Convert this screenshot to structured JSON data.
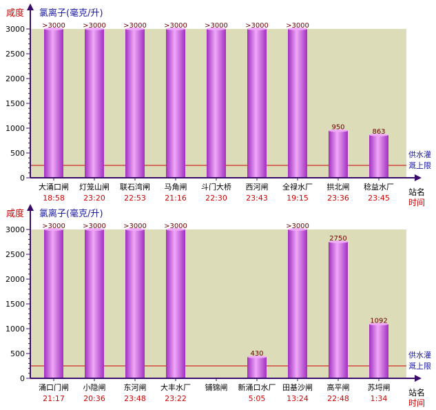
{
  "colors": {
    "plot_bg": "#dcdcb8",
    "axis": "#3a0a6a",
    "threshold": "#cc0000",
    "label_red": "#cc0000",
    "label_blue": "#1a1aa0",
    "value_text": "#660000",
    "bar_light": "#f0a8f8",
    "bar_dark": "#a030c0"
  },
  "chart_data": [
    {
      "type": "bar",
      "title": "",
      "ylabel_left": "咸度",
      "ylabel_right": "氯离子(毫克/升)",
      "xlabel_station": "站名",
      "xlabel_time": "时间",
      "threshold_label_line1": "供水灌",
      "threshold_label_line2": "溉上限",
      "threshold": 250,
      "ylim": [
        0,
        3000
      ],
      "yticks": [
        "0",
        "500",
        "1000",
        "1500",
        "2000",
        "2500",
        "3000"
      ],
      "categories": [
        "大涌口闸",
        "灯笼山闸",
        "联石湾闸",
        "马角闸",
        "斗门大桥",
        "西河闸",
        "全禄水厂",
        "拱北闸",
        "稔益水厂"
      ],
      "times": [
        "18:58",
        "23:20",
        "22:53",
        "21:16",
        "22:30",
        "23:43",
        "19:15",
        "23:36",
        "23:45"
      ],
      "values": [
        3000,
        3000,
        3000,
        3000,
        3000,
        3000,
        3000,
        950,
        863
      ],
      "value_labels": [
        ">3000",
        ">3000",
        ">3000",
        ">3000",
        ">3000",
        ">3000",
        ">3000",
        "950",
        "863"
      ]
    },
    {
      "type": "bar",
      "title": "",
      "ylabel_left": "咸度",
      "ylabel_right": "氯离子(毫克/升)",
      "xlabel_station": "站名",
      "xlabel_time": "时间",
      "threshold_label_line1": "供水灌",
      "threshold_label_line2": "溉上限",
      "threshold": 250,
      "ylim": [
        0,
        3000
      ],
      "yticks": [
        "0",
        "500",
        "1000",
        "1500",
        "2000",
        "2500",
        "3000"
      ],
      "categories": [
        "涌口门闸",
        "小隐闸",
        "东河闸",
        "大丰水厂",
        "铺锦闸",
        "新涌口水厂",
        "田基沙闸",
        "高平闸",
        "苏埒闸"
      ],
      "times": [
        "21:17",
        "20:36",
        "23:48",
        "23:22",
        "",
        "5:05",
        "13:24",
        "22:48",
        "1:34"
      ],
      "values": [
        3000,
        3000,
        3000,
        3000,
        null,
        430,
        3000,
        2750,
        1092
      ],
      "value_labels": [
        ">3000",
        ">3000",
        ">3000",
        ">3000",
        "",
        "430",
        ">3000",
        "2750",
        "1092"
      ]
    }
  ]
}
